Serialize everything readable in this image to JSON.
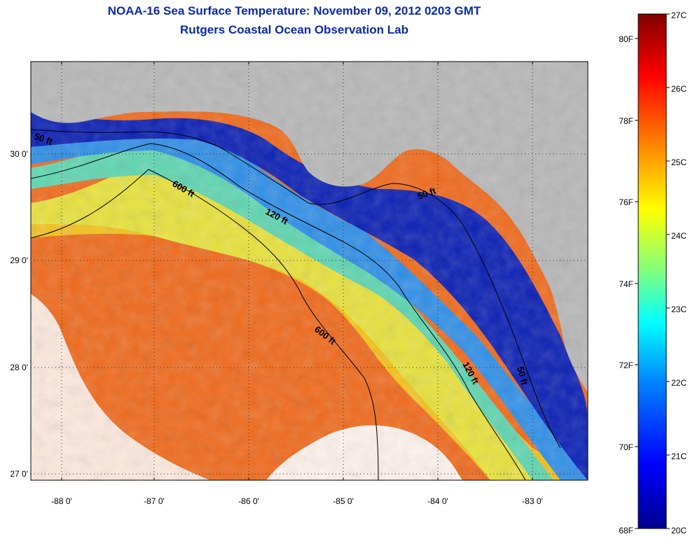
{
  "title": {
    "line1": "NOAA-16 Sea Surface Temperature:  November 09, 2012 0203 GMT",
    "line2": "Rutgers Coastal Ocean Observation Lab"
  },
  "map": {
    "lon_range": [
      -88.3,
      -82.5
    ],
    "lat_range": [
      26.95,
      30.85
    ],
    "lon_ticks": [
      "-88 0'",
      "-87 0'",
      "-86 0'",
      "-85 0'",
      "-84 0'",
      "-83 0'"
    ],
    "lat_ticks": [
      "30 0'",
      "29 0'",
      "28 0'",
      "27 0'"
    ],
    "contour_labels": [
      "50 ft",
      "600 ft",
      "120 ft",
      "50 ft",
      "600 ft",
      "120 ft",
      "50 ft"
    ],
    "land_color": "#b8b8b8",
    "cloud_color": "#ffffff"
  },
  "colorbar": {
    "celsius": [
      "27C",
      "26C",
      "25C",
      "24C",
      "23C",
      "22C",
      "21C",
      "20C"
    ],
    "fahrenheit": [
      "80F",
      "78F",
      "76F",
      "74F",
      "72F",
      "70F",
      "68F"
    ],
    "colors": [
      "#00008f",
      "#0000ff",
      "#0080ff",
      "#00ffff",
      "#80ff80",
      "#ffff00",
      "#ff8000",
      "#ff0000",
      "#800000"
    ]
  }
}
